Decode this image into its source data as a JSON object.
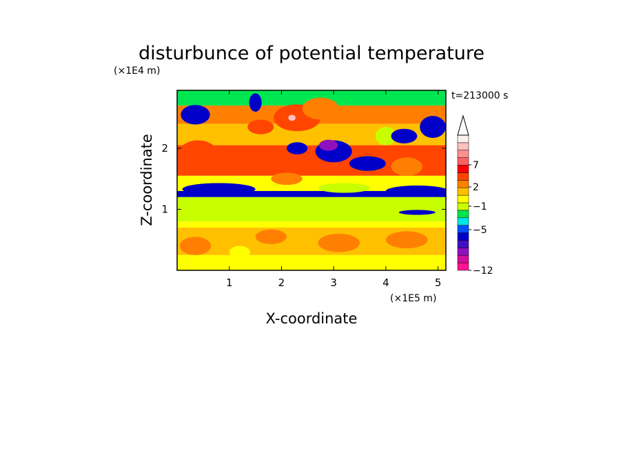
{
  "chart_data": {
    "type": "heatmap",
    "title": "disturbunce of potential temperature",
    "time_label": "t=213000 s",
    "xlabel": "X-coordinate",
    "ylabel": "Z-coordinate",
    "x_units": "(×1E5 m)",
    "y_units": "(×1E4 m)",
    "xlim": [
      0,
      5.15
    ],
    "ylim": [
      0,
      2.95
    ],
    "x_ticks": [
      "1",
      "2",
      "3",
      "4",
      "5"
    ],
    "y_ticks": [
      "1",
      "2"
    ],
    "colorbar": {
      "tick_labels": [
        "7",
        "2",
        "−1",
        "−5",
        "−12"
      ],
      "colors": [
        "#ff1493",
        "#d0109a",
        "#9010c0",
        "#4010c8",
        "#0000c8",
        "#0050ff",
        "#00e6e6",
        "#00e650",
        "#c8ff00",
        "#ffff00",
        "#ffc000",
        "#ff8000",
        "#ff4500",
        "#ff0000",
        "#ff6060",
        "#ff9090",
        "#ffc0c0",
        "#fff0f0"
      ],
      "extend_max": true
    },
    "rows": [
      {
        "z_top": 2.95,
        "z_bottom": 2.7,
        "value": -2
      },
      {
        "z_top": 2.7,
        "z_bottom": 2.4,
        "value": 2
      },
      {
        "z_top": 2.4,
        "z_bottom": 2.05,
        "value": 1
      },
      {
        "z_top": 2.05,
        "z_bottom": 1.55,
        "value": 3
      },
      {
        "z_top": 1.55,
        "z_bottom": 1.3,
        "value": 0
      },
      {
        "z_top": 1.3,
        "z_bottom": 1.2,
        "value": -5
      },
      {
        "z_top": 1.2,
        "z_bottom": 0.8,
        "value": -1
      },
      {
        "z_top": 0.8,
        "z_bottom": 0.7,
        "value": 0
      },
      {
        "z_top": 0.7,
        "z_bottom": 0.25,
        "value": 1
      },
      {
        "z_top": 0.25,
        "z_bottom": 0.0,
        "value": 0
      }
    ],
    "features": [
      {
        "x": 0.35,
        "z": 2.55,
        "rx": 0.28,
        "rz": 0.16,
        "value": -5
      },
      {
        "x": 1.5,
        "z": 2.75,
        "rx": 0.12,
        "rz": 0.15,
        "value": -5
      },
      {
        "x": 2.3,
        "z": 2.5,
        "rx": 0.45,
        "rz": 0.22,
        "value": 3
      },
      {
        "x": 2.2,
        "z": 2.5,
        "rx": 0.07,
        "rz": 0.05,
        "value": 7
      },
      {
        "x": 1.6,
        "z": 2.35,
        "rx": 0.25,
        "rz": 0.12,
        "value": 3
      },
      {
        "x": 2.75,
        "z": 2.65,
        "rx": 0.35,
        "rz": 0.18,
        "value": 2
      },
      {
        "x": 2.3,
        "z": 2.0,
        "rx": 0.2,
        "rz": 0.1,
        "value": -5
      },
      {
        "x": 3.0,
        "z": 1.95,
        "rx": 0.35,
        "rz": 0.18,
        "value": -5
      },
      {
        "x": 2.9,
        "z": 2.05,
        "rx": 0.18,
        "rz": 0.09,
        "value": -7
      },
      {
        "x": 3.65,
        "z": 1.75,
        "rx": 0.35,
        "rz": 0.12,
        "value": -5
      },
      {
        "x": 4.0,
        "z": 2.2,
        "rx": 0.2,
        "rz": 0.15,
        "value": -1
      },
      {
        "x": 4.35,
        "z": 2.2,
        "rx": 0.25,
        "rz": 0.12,
        "value": -5
      },
      {
        "x": 4.9,
        "z": 2.35,
        "rx": 0.25,
        "rz": 0.18,
        "value": -5
      },
      {
        "x": 4.4,
        "z": 1.7,
        "rx": 0.3,
        "rz": 0.15,
        "value": 2
      },
      {
        "x": 0.4,
        "z": 1.95,
        "rx": 0.35,
        "rz": 0.18,
        "value": 3
      },
      {
        "x": 0.95,
        "z": 1.8,
        "rx": 0.25,
        "rz": 0.14,
        "value": 3
      },
      {
        "x": 0.8,
        "z": 1.33,
        "rx": 0.7,
        "rz": 0.1,
        "value": -5
      },
      {
        "x": 3.2,
        "z": 1.35,
        "rx": 0.5,
        "rz": 0.08,
        "value": -1
      },
      {
        "x": 4.6,
        "z": 1.3,
        "rx": 0.6,
        "rz": 0.09,
        "value": -5
      },
      {
        "x": 4.6,
        "z": 0.95,
        "rx": 0.35,
        "rz": 0.04,
        "value": -5
      },
      {
        "x": 2.1,
        "z": 1.5,
        "rx": 0.3,
        "rz": 0.1,
        "value": 2
      },
      {
        "x": 1.8,
        "z": 0.55,
        "rx": 0.3,
        "rz": 0.12,
        "value": 2
      },
      {
        "x": 3.1,
        "z": 0.45,
        "rx": 0.4,
        "rz": 0.15,
        "value": 2
      },
      {
        "x": 0.35,
        "z": 0.4,
        "rx": 0.3,
        "rz": 0.15,
        "value": 2
      },
      {
        "x": 1.2,
        "z": 0.3,
        "rx": 0.2,
        "rz": 0.1,
        "value": 0
      },
      {
        "x": 4.4,
        "z": 0.5,
        "rx": 0.4,
        "rz": 0.14,
        "value": 2
      }
    ]
  }
}
